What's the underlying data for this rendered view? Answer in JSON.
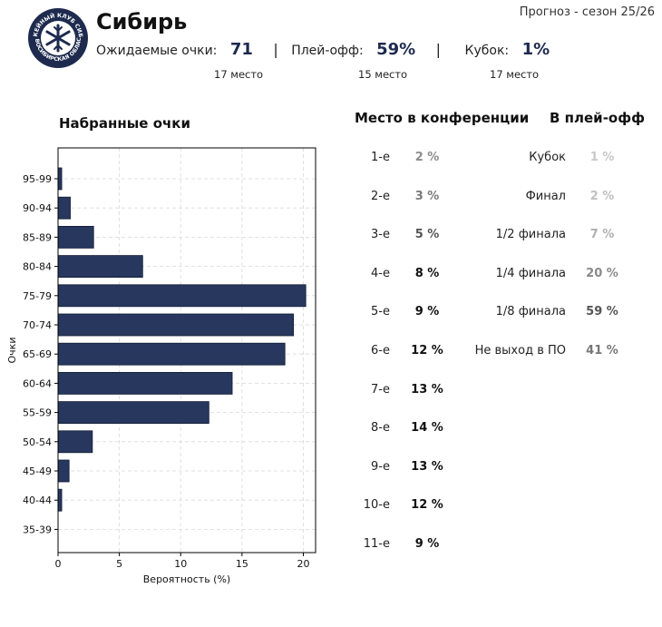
{
  "header": {
    "team_name": "Сибирь",
    "forecast_label": "Прогноз - сезон 25/26",
    "logo": {
      "icon": "snowflake-icon",
      "text_top": "ХОККЕЙНЫЙ КЛУБ СИБИРЬ",
      "text_bottom": "НОВОСИБИРСКАЯ ОБЛАСТЬ"
    },
    "expected_points_label": "Ожидаемые очки:",
    "expected_points_value": "71",
    "expected_points_rank": "17 место",
    "playoff_label": "Плей-офф:",
    "playoff_value": "59%",
    "playoff_rank": "15 место",
    "cup_label": "Кубок:",
    "cup_value": "1%",
    "cup_rank": "17 место",
    "separator": "|"
  },
  "conference": {
    "title": "Место в конференции",
    "rows": [
      {
        "place": "1-е",
        "pct": "2 %",
        "color": "#8c8c8c"
      },
      {
        "place": "2-е",
        "pct": "3 %",
        "color": "#7a7a7a"
      },
      {
        "place": "3-е",
        "pct": "5 %",
        "color": "#555555"
      },
      {
        "place": "4-е",
        "pct": "8 %",
        "color": "#111111"
      },
      {
        "place": "5-е",
        "pct": "9 %",
        "color": "#111111"
      },
      {
        "place": "6-е",
        "pct": "12 %",
        "color": "#111111"
      },
      {
        "place": "7-е",
        "pct": "13 %",
        "color": "#111111"
      },
      {
        "place": "8-е",
        "pct": "14 %",
        "color": "#111111"
      },
      {
        "place": "9-е",
        "pct": "13 %",
        "color": "#111111"
      },
      {
        "place": "10-е",
        "pct": "12 %",
        "color": "#111111"
      },
      {
        "place": "11-е",
        "pct": "9 %",
        "color": "#111111"
      }
    ]
  },
  "playoff": {
    "title": "В плей-офф",
    "rows": [
      {
        "stage": "Кубок",
        "pct": "1 %",
        "color": "#c8c8c8"
      },
      {
        "stage": "Финал",
        "pct": "2 %",
        "color": "#c0c0c0"
      },
      {
        "stage": "1/2 финала",
        "pct": "7 %",
        "color": "#b0b0b0"
      },
      {
        "stage": "1/4 финала",
        "pct": "20 %",
        "color": "#8a8a8a"
      },
      {
        "stage": "1/8 финала",
        "pct": "59 %",
        "color": "#555555"
      },
      {
        "stage": "Не выход в ПО",
        "pct": "41 %",
        "color": "#777777"
      }
    ]
  },
  "chart_data": {
    "type": "bar",
    "orientation": "horizontal",
    "title": "Набранные очки",
    "xlabel": "Вероятность (%)",
    "ylabel": "Очки",
    "categories": [
      "95-99",
      "90-94",
      "85-89",
      "80-84",
      "75-79",
      "70-74",
      "65-69",
      "60-64",
      "55-59",
      "50-54",
      "45-49",
      "40-44",
      "35-39"
    ],
    "values": [
      0.3,
      1.0,
      2.9,
      6.9,
      20.2,
      19.2,
      18.5,
      14.2,
      12.3,
      2.8,
      0.9,
      0.3,
      0.0
    ],
    "xlim": [
      0,
      21
    ],
    "xticks": [
      "0",
      "5",
      "10",
      "15",
      "20"
    ],
    "xtick_values": [
      0,
      5,
      10,
      15,
      20
    ],
    "grid": true,
    "bar_color": "#27375e"
  }
}
